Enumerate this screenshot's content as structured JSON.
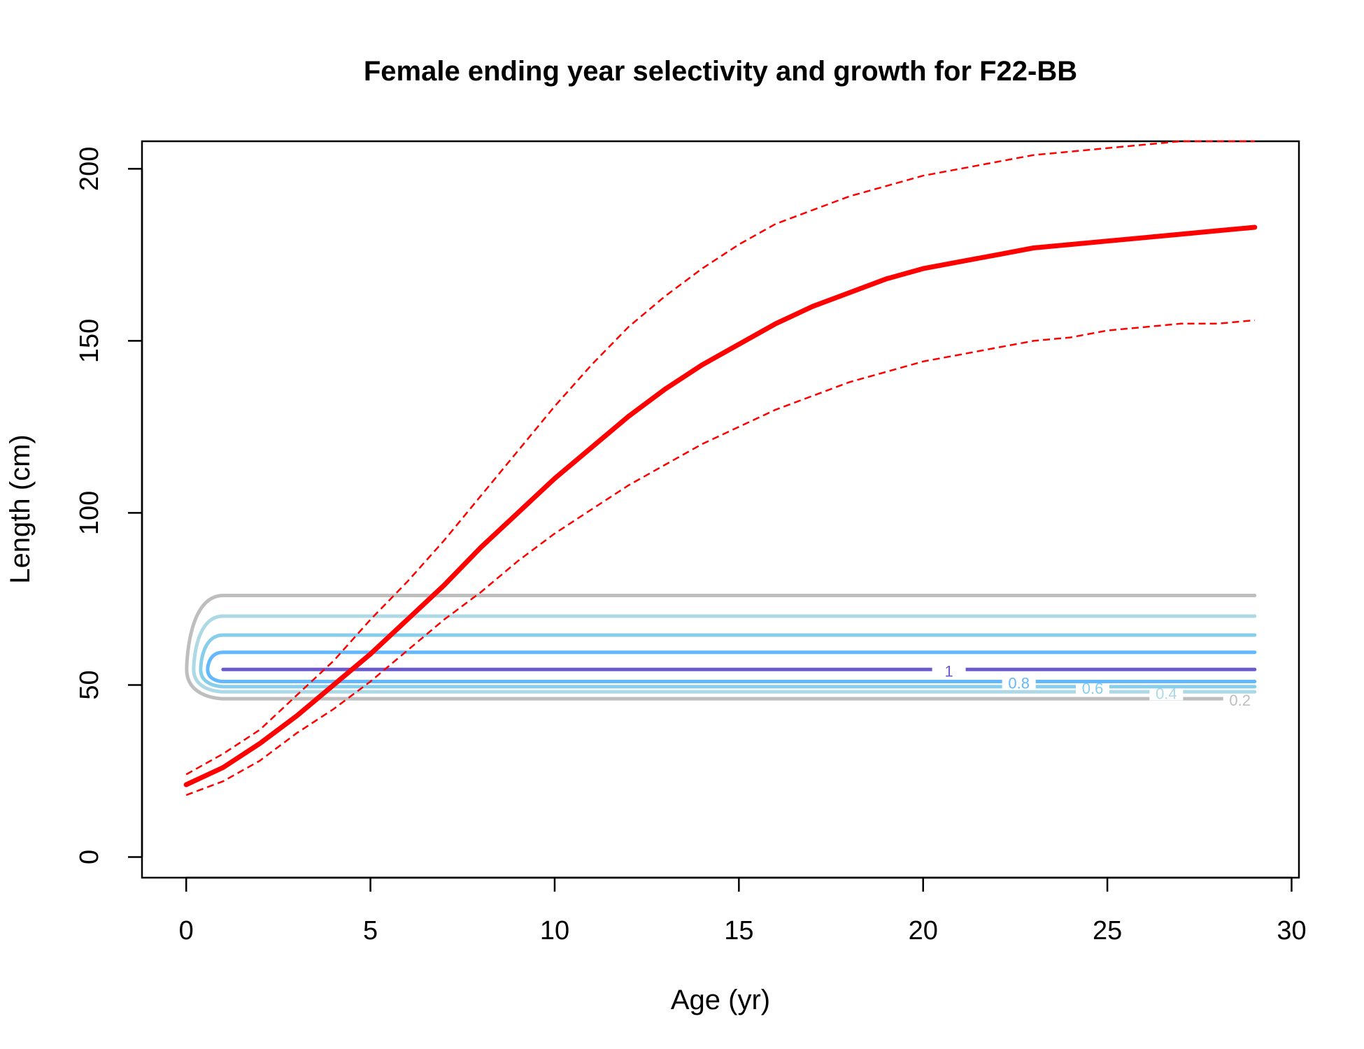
{
  "chart_data": {
    "type": "line",
    "title": "Female ending year selectivity and growth for F22-BB",
    "xlabel": "Age (yr)",
    "ylabel": "Length (cm)",
    "xlim": [
      -1.2,
      30.2
    ],
    "ylim": [
      -6,
      208
    ],
    "xticks": [
      0,
      5,
      10,
      15,
      20,
      25,
      30
    ],
    "yticks": [
      0,
      50,
      100,
      150,
      200
    ],
    "grid": false,
    "legend": "none",
    "colors": {
      "growth": "#ff0000",
      "contour_0_2": "#bebebe",
      "contour_0_4": "#add8e6",
      "contour_0_6": "#87ceeb",
      "contour_0_8": "#63b8ff",
      "contour_1": "#6a5acd"
    },
    "growth_curve": {
      "x": [
        0,
        1,
        2,
        3,
        4,
        5,
        6,
        7,
        8,
        9,
        10,
        11,
        12,
        13,
        14,
        15,
        16,
        17,
        18,
        19,
        20,
        21,
        22,
        23,
        24,
        25,
        26,
        27,
        28,
        29
      ],
      "mean": [
        21,
        26,
        33,
        41,
        50,
        59,
        69,
        79,
        90,
        100,
        110,
        119,
        128,
        136,
        143,
        149,
        155,
        160,
        164,
        168,
        171,
        173,
        175,
        177,
        178,
        179,
        180,
        181,
        182,
        183
      ],
      "upper": [
        24,
        30,
        37,
        47,
        57,
        69,
        80,
        92,
        105,
        118,
        131,
        143,
        154,
        163,
        171,
        178,
        184,
        188,
        192,
        195,
        198,
        200,
        202,
        204,
        205,
        206,
        207,
        208,
        209,
        209
      ],
      "lower": [
        18,
        22,
        28,
        36,
        43,
        51,
        60,
        69,
        77,
        86,
        94,
        101,
        108,
        114,
        120,
        125,
        130,
        134,
        138,
        141,
        144,
        146,
        148,
        150,
        151,
        153,
        154,
        155,
        155,
        156
      ]
    },
    "selectivity_contours": [
      {
        "level": "0.2",
        "x_start": 1,
        "x_end": 29,
        "y_low": 46,
        "y_high": 76,
        "label_x": 28.6
      },
      {
        "level": "0.4",
        "x_start": 1,
        "x_end": 29,
        "y_low": 48,
        "y_high": 70,
        "label_x": 26.6
      },
      {
        "level": "0.6",
        "x_start": 1,
        "x_end": 29,
        "y_low": 49.5,
        "y_high": 64.5,
        "label_x": 24.6
      },
      {
        "level": "0.8",
        "x_start": 1,
        "x_end": 29,
        "y_low": 51,
        "y_high": 59.5,
        "label_x": 22.6
      },
      {
        "level": "1",
        "x_start": 1,
        "x_end": 29,
        "y_low": 54.5,
        "y_high": 54.5,
        "label_x": 20.7
      }
    ]
  }
}
